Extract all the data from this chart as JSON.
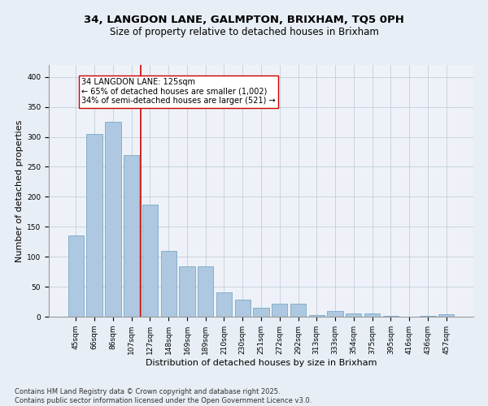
{
  "title": "34, LANGDON LANE, GALMPTON, BRIXHAM, TQ5 0PH",
  "subtitle": "Size of property relative to detached houses in Brixham",
  "xlabel": "Distribution of detached houses by size in Brixham",
  "ylabel": "Number of detached properties",
  "categories": [
    "45sqm",
    "66sqm",
    "86sqm",
    "107sqm",
    "127sqm",
    "148sqm",
    "169sqm",
    "189sqm",
    "210sqm",
    "230sqm",
    "251sqm",
    "272sqm",
    "292sqm",
    "313sqm",
    "333sqm",
    "354sqm",
    "375sqm",
    "395sqm",
    "416sqm",
    "436sqm",
    "457sqm"
  ],
  "values": [
    136,
    305,
    325,
    270,
    187,
    110,
    84,
    84,
    40,
    29,
    15,
    22,
    22,
    3,
    9,
    5,
    5,
    1,
    0,
    1,
    4
  ],
  "bar_color": "#adc8e0",
  "bar_edge_color": "#6a9fc0",
  "vline_color": "#cc0000",
  "annotation_text": "34 LANGDON LANE: 125sqm\n← 65% of detached houses are smaller (1,002)\n34% of semi-detached houses are larger (521) →",
  "annotation_box_color": "#ffffff",
  "annotation_box_edge": "#cc0000",
  "footnote": "Contains HM Land Registry data © Crown copyright and database right 2025.\nContains public sector information licensed under the Open Government Licence v3.0.",
  "ylim": [
    0,
    420
  ],
  "yticks": [
    0,
    50,
    100,
    150,
    200,
    250,
    300,
    350,
    400
  ],
  "bg_color": "#e8eef5",
  "plot_bg_color": "#eef2f8",
  "title_fontsize": 9.5,
  "subtitle_fontsize": 8.5,
  "tick_fontsize": 6.5,
  "label_fontsize": 8,
  "annotation_fontsize": 7,
  "footnote_fontsize": 6
}
